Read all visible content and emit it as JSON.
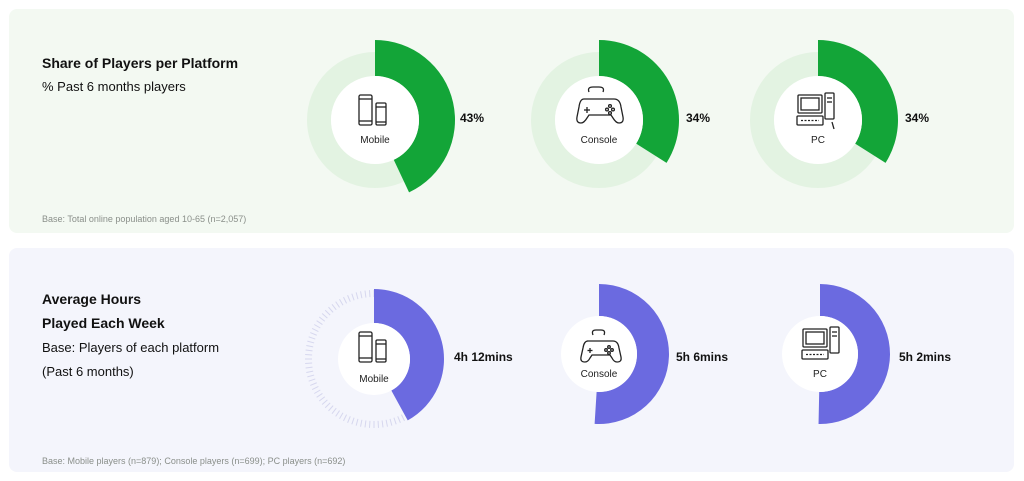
{
  "chart_data": [
    {
      "type": "pie",
      "title": "Share of Players per Platform",
      "subtitle": "% Past 6 months players",
      "categories": [
        "Mobile",
        "Console",
        "PC"
      ],
      "values": [
        43,
        34,
        34
      ],
      "value_labels": [
        "43%",
        "34%",
        "34%"
      ],
      "max": 100,
      "note": "Base: Total online population aged 10-65 (n=2,057)",
      "colors": {
        "fill": "#13a538",
        "track": "#e3f3e2",
        "center": "#ffffff"
      }
    },
    {
      "type": "pie",
      "title_lines": [
        "Average Hours",
        "Played Each Week"
      ],
      "subtitle_lines": [
        "Base: Players of each platform",
        "(Past 6 months)"
      ],
      "categories": [
        "Mobile",
        "Console",
        "PC"
      ],
      "values": [
        4.2,
        5.1,
        5.0333
      ],
      "value_labels": [
        "4h 12mins",
        "5h 6mins",
        "5h 2mins"
      ],
      "max": 10,
      "note": "Base: Mobile players (n=879); Console players (n=699); PC players (n=692)",
      "colors": {
        "fill": "#6b6ae0",
        "tick": "#d6d7ee",
        "center": "#ffffff"
      }
    }
  ]
}
